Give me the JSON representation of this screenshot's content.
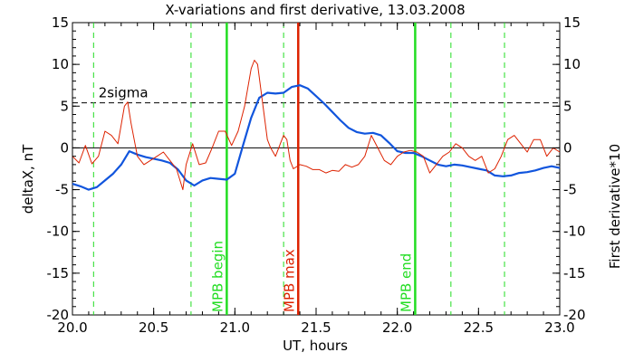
{
  "chart_data": {
    "type": "line",
    "title": "X-variations and first derivative, 13.03.2008",
    "xlabel": "UT, hours",
    "ylabel_left": "deltaX, nT",
    "ylabel_right": "First derivative*10",
    "xlim": [
      20.0,
      23.0
    ],
    "ylim": [
      -20,
      15
    ],
    "x_ticks": [
      "20.0",
      "20.5",
      "21.0",
      "21.5",
      "22.0",
      "22.5",
      "23.0"
    ],
    "y_ticks": [
      "15",
      "10",
      "5",
      "0",
      "-5",
      "-10",
      "-15",
      "-20"
    ],
    "grid": false,
    "colors": {
      "left_axis_title": "#0044cc",
      "right_axis_title": "#dd2200"
    },
    "series": [
      {
        "name": "deltaX",
        "axis": "left",
        "color": "#1155dd",
        "x": [
          20.0,
          20.05,
          20.1,
          20.15,
          20.2,
          20.25,
          20.3,
          20.35,
          20.4,
          20.45,
          20.5,
          20.55,
          20.6,
          20.65,
          20.7,
          20.75,
          20.8,
          20.85,
          20.9,
          20.95,
          21.0,
          21.05,
          21.1,
          21.15,
          21.2,
          21.25,
          21.3,
          21.35,
          21.4,
          21.45,
          21.5,
          21.55,
          21.6,
          21.65,
          21.7,
          21.75,
          21.8,
          21.85,
          21.9,
          21.95,
          22.0,
          22.05,
          22.1,
          22.15,
          22.2,
          22.25,
          22.3,
          22.35,
          22.4,
          22.45,
          22.5,
          22.55,
          22.6,
          22.65,
          22.7,
          22.75,
          22.8,
          22.85,
          22.9,
          22.95,
          23.0
        ],
        "y": [
          -4.3,
          -4.6,
          -5.0,
          -4.7,
          -3.9,
          -3.1,
          -2.0,
          -0.4,
          -0.8,
          -1.1,
          -1.3,
          -1.5,
          -1.8,
          -2.6,
          -3.9,
          -4.5,
          -3.9,
          -3.6,
          -3.7,
          -3.8,
          -3.1,
          0.3,
          3.6,
          6.0,
          6.6,
          6.5,
          6.6,
          7.3,
          7.5,
          7.1,
          6.2,
          5.3,
          4.3,
          3.3,
          2.4,
          1.9,
          1.7,
          1.8,
          1.5,
          0.6,
          -0.4,
          -0.6,
          -0.6,
          -1.0,
          -1.5,
          -2.0,
          -2.2,
          -2.0,
          -2.1,
          -2.3,
          -2.5,
          -2.7,
          -3.3,
          -3.4,
          -3.3,
          -3.0,
          -2.9,
          -2.7,
          -2.4,
          -2.2,
          -2.4
        ]
      },
      {
        "name": "First derivative*10",
        "axis": "right",
        "color": "#dd2200",
        "x": [
          20.0,
          20.04,
          20.08,
          20.12,
          20.16,
          20.2,
          20.24,
          20.28,
          20.32,
          20.34,
          20.36,
          20.4,
          20.44,
          20.48,
          20.52,
          20.56,
          20.6,
          20.64,
          20.68,
          20.7,
          20.74,
          20.78,
          20.82,
          20.86,
          20.9,
          20.94,
          20.98,
          21.02,
          21.06,
          21.1,
          21.12,
          21.14,
          21.16,
          21.18,
          21.2,
          21.22,
          21.25,
          21.28,
          21.3,
          21.32,
          21.34,
          21.36,
          21.4,
          21.44,
          21.48,
          21.52,
          21.56,
          21.6,
          21.64,
          21.68,
          21.72,
          21.76,
          21.8,
          21.84,
          21.88,
          21.92,
          21.96,
          22.0,
          22.04,
          22.08,
          22.12,
          22.16,
          22.2,
          22.24,
          22.28,
          22.32,
          22.36,
          22.4,
          22.44,
          22.48,
          22.52,
          22.56,
          22.6,
          22.64,
          22.68,
          22.72,
          22.76,
          22.8,
          22.84,
          22.88,
          22.92,
          22.96,
          23.0
        ],
        "y": [
          -1.0,
          -1.8,
          0.3,
          -1.9,
          -1.0,
          2.0,
          1.5,
          0.5,
          5.0,
          5.5,
          3.0,
          -1.0,
          -2.0,
          -1.5,
          -1.0,
          -0.5,
          -1.5,
          -2.5,
          -5.0,
          -2.0,
          0.5,
          -2.0,
          -1.8,
          0.0,
          2.0,
          2.0,
          0.3,
          2.0,
          5.0,
          9.5,
          10.5,
          10.0,
          7.0,
          4.0,
          1.0,
          0.0,
          -1.0,
          0.5,
          1.5,
          1.0,
          -1.5,
          -2.5,
          -2.0,
          -2.2,
          -2.6,
          -2.6,
          -3.0,
          -2.7,
          -2.8,
          -2.0,
          -2.3,
          -2.0,
          -1.0,
          1.5,
          0.0,
          -1.5,
          -2.0,
          -1.0,
          -0.5,
          -0.3,
          -0.5,
          -1.0,
          -3.0,
          -2.0,
          -1.0,
          -0.5,
          0.5,
          0.0,
          -1.0,
          -1.5,
          -1.0,
          -3.0,
          -2.5,
          -1.0,
          1.0,
          1.5,
          0.5,
          -0.5,
          1.0,
          1.0,
          -1.0,
          0.0,
          -0.5
        ]
      }
    ],
    "threshold": {
      "label": "2sigma",
      "y": 5.4,
      "color": "#000000"
    },
    "dashed_vlines": {
      "color": "#22dd22",
      "x": [
        20.13,
        20.73,
        21.3,
        22.33,
        22.66
      ]
    },
    "events": [
      {
        "x": 20.95,
        "label": "MPB begin",
        "color": "#22dd22"
      },
      {
        "x": 21.39,
        "label": "MPB max",
        "color": "#dd2200"
      },
      {
        "x": 22.11,
        "label": "MPB end",
        "color": "#22dd22"
      }
    ]
  }
}
